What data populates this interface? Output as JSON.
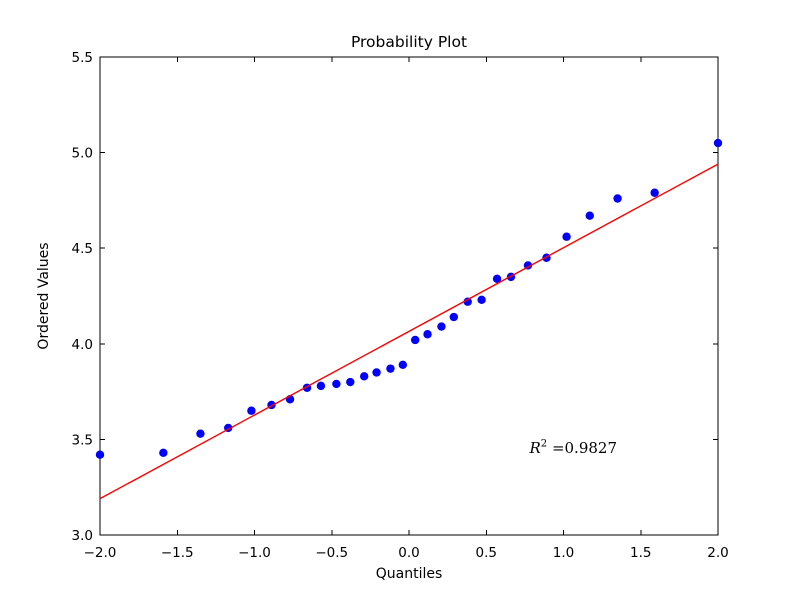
{
  "figure": {
    "background_color": "#ffffff",
    "text_color": "#000000",
    "spine_color": "#000000"
  },
  "chart_data": {
    "type": "scatter",
    "title": "Probability Plot",
    "xlabel": "Quantiles",
    "ylabel": "Ordered Values",
    "xlim": [
      -2.0,
      2.0
    ],
    "ylim": [
      3.0,
      5.5
    ],
    "xticks": [
      -2.0,
      -1.5,
      -1.0,
      -0.5,
      0.0,
      0.5,
      1.0,
      1.5,
      2.0
    ],
    "xtick_labels": [
      "−2.0",
      "−1.5",
      "−1.0",
      "−0.5",
      "0.0",
      "0.5",
      "1.0",
      "1.5",
      "2.0"
    ],
    "yticks": [
      3.0,
      3.5,
      4.0,
      4.5,
      5.0,
      5.5
    ],
    "ytick_labels": [
      "3.0",
      "3.5",
      "4.0",
      "4.5",
      "5.0",
      "5.5"
    ],
    "grid": false,
    "legend": null,
    "series": [
      {
        "name": "ordered-values-points",
        "plot_type": "scatter",
        "marker": "circle",
        "color": "#0000ff",
        "x": [
          -2.0,
          -1.59,
          -1.35,
          -1.17,
          -1.02,
          -0.89,
          -0.77,
          -0.66,
          -0.57,
          -0.47,
          -0.38,
          -0.29,
          -0.21,
          -0.12,
          -0.04,
          0.04,
          0.12,
          0.21,
          0.29,
          0.38,
          0.47,
          0.57,
          0.66,
          0.77,
          0.89,
          1.02,
          1.17,
          1.35,
          1.59,
          2.0
        ],
        "y": [
          3.42,
          3.43,
          3.53,
          3.56,
          3.65,
          3.68,
          3.71,
          3.77,
          3.78,
          3.79,
          3.8,
          3.83,
          3.85,
          3.87,
          3.89,
          4.02,
          4.05,
          4.09,
          4.14,
          4.22,
          4.23,
          4.34,
          4.35,
          4.41,
          4.45,
          4.56,
          4.67,
          4.76,
          4.79,
          5.05
        ]
      },
      {
        "name": "least-squares-fit-line",
        "plot_type": "line",
        "color": "#ff0000",
        "x": [
          -2.0,
          2.0
        ],
        "y": [
          3.19,
          4.94
        ]
      }
    ],
    "annotation": {
      "text": "R² =0.9827",
      "base": "R",
      "superscript": "2",
      "suffix": " =0.9827",
      "x": 0.78,
      "y": 3.43
    }
  }
}
